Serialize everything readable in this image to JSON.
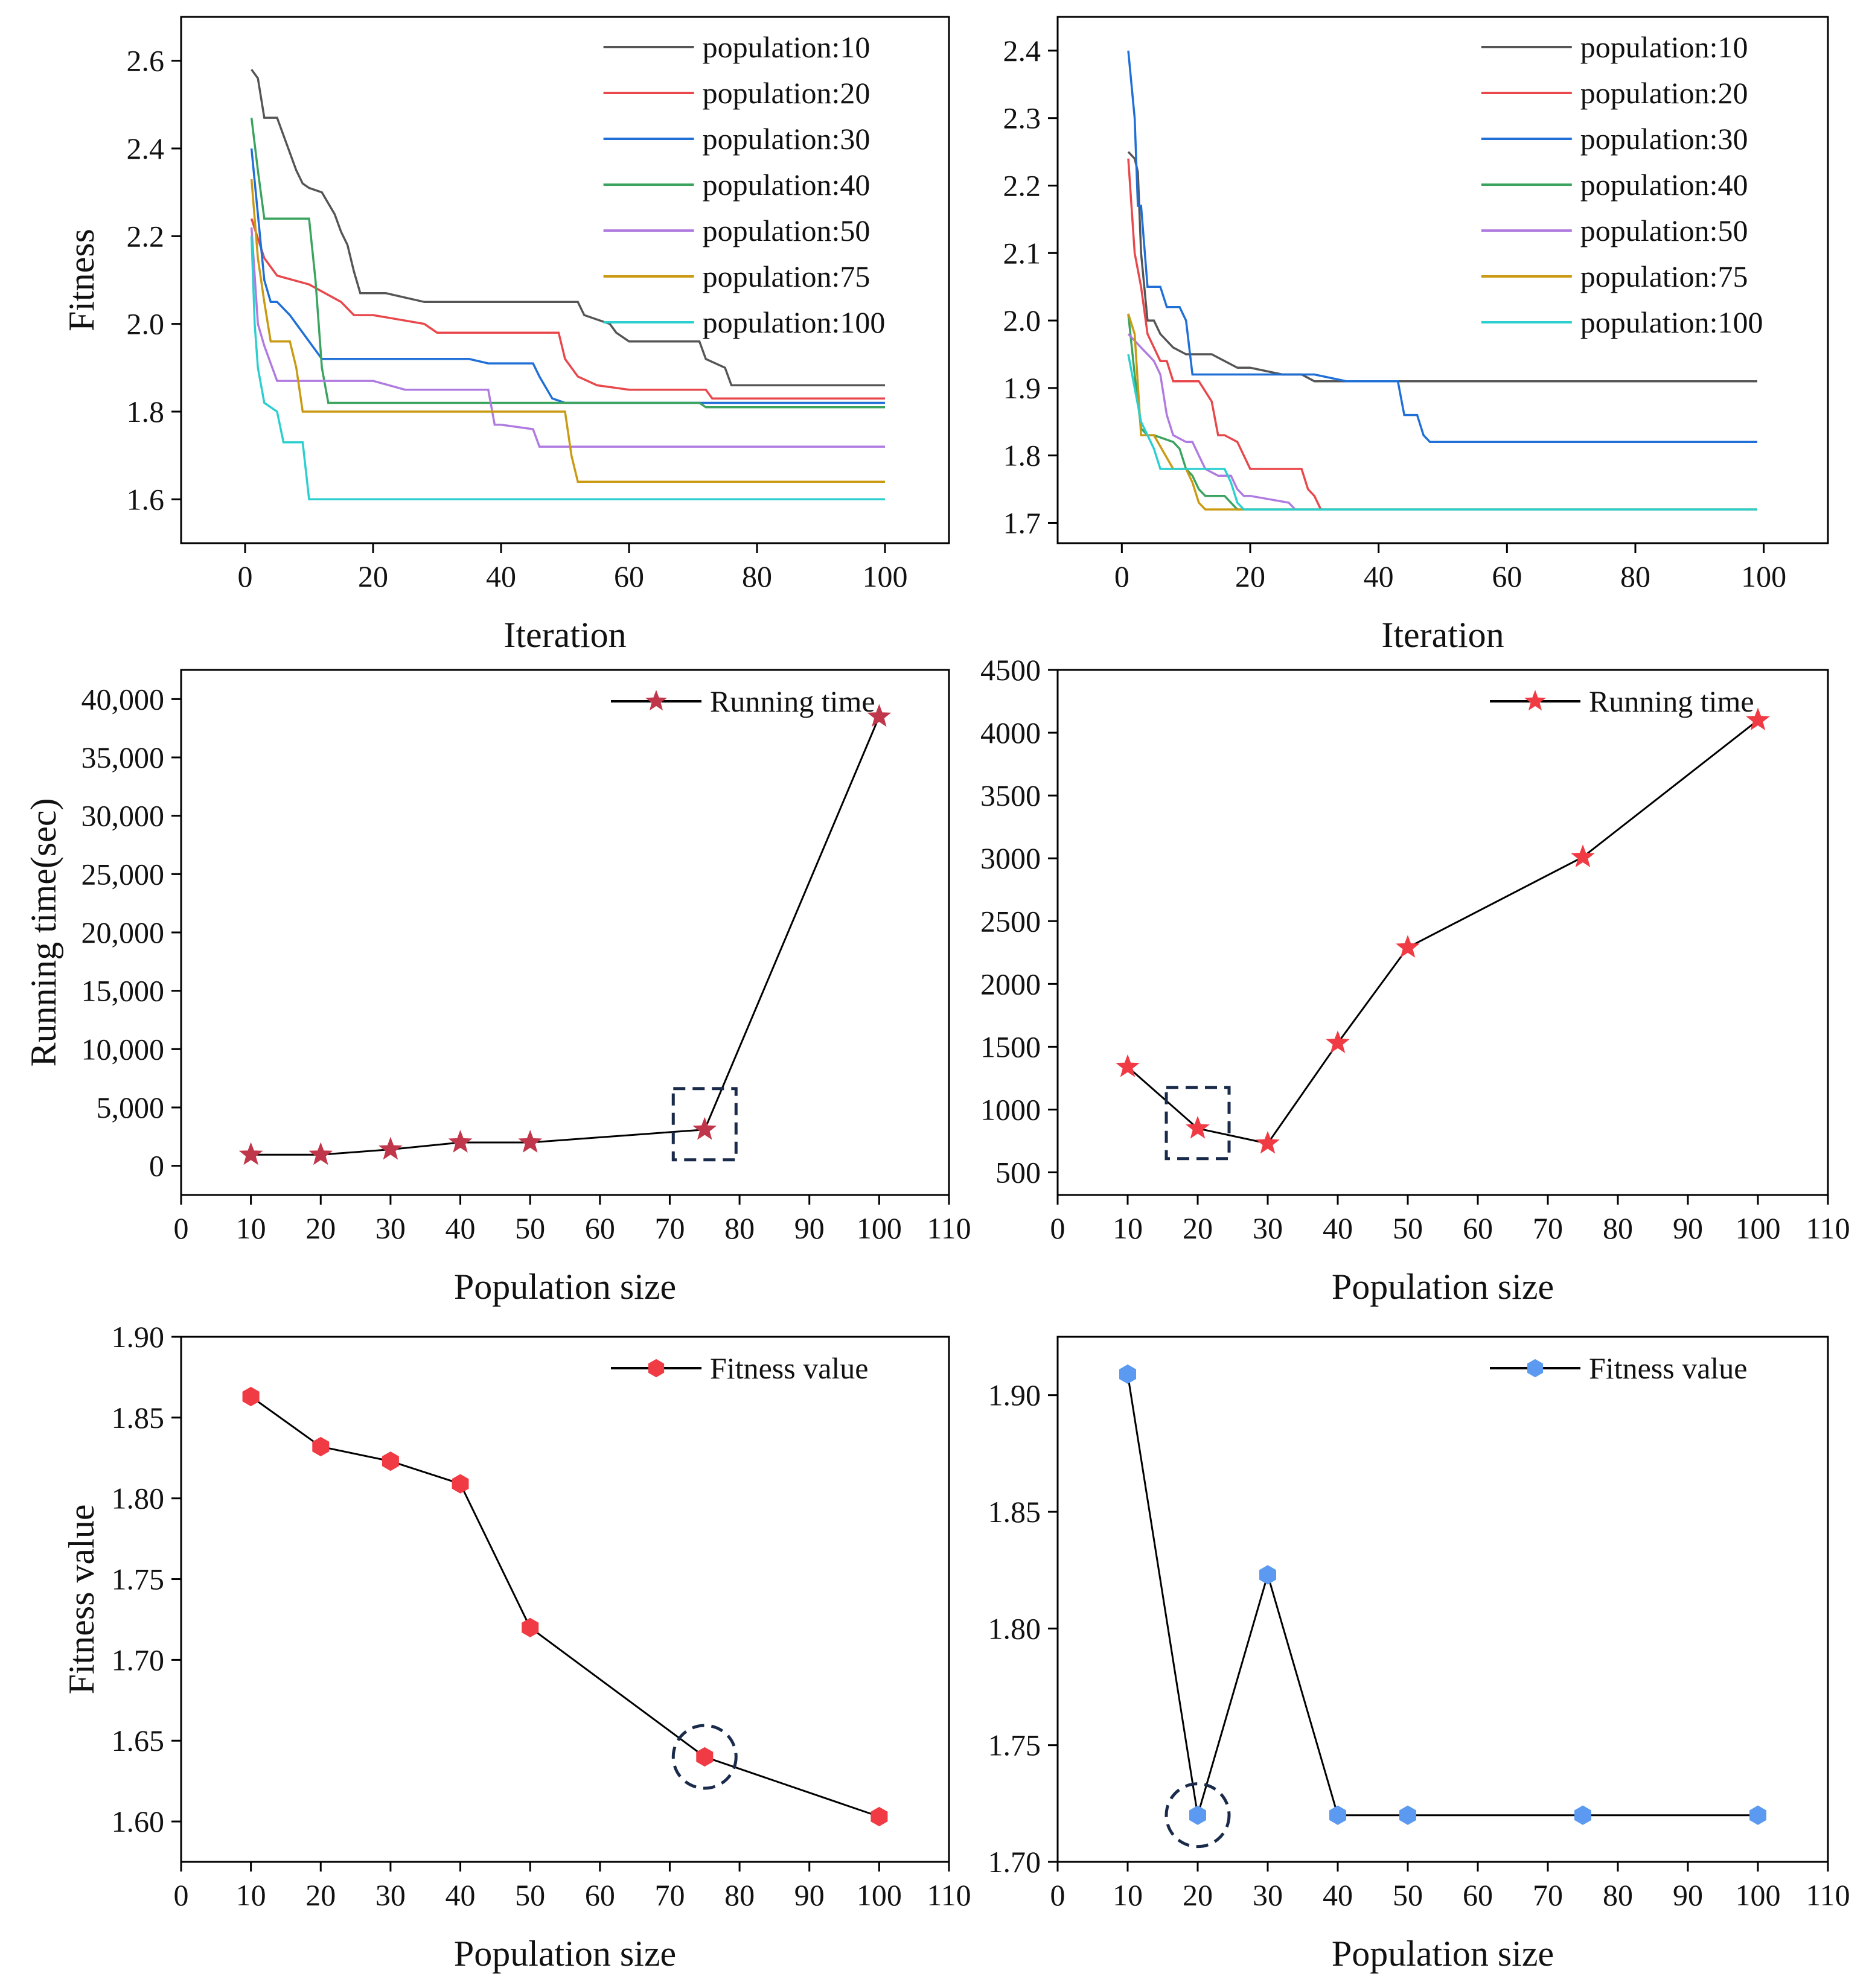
{
  "chart_data": [
    {
      "id": "fitness-convergence-left",
      "type": "line",
      "xlabel": "Iteration",
      "ylabel": "Fitness",
      "xlim": [
        -10,
        110
      ],
      "ylim": [
        1.5,
        2.7
      ],
      "xticks": [
        0,
        20,
        40,
        60,
        80,
        100
      ],
      "yticks": [
        1.6,
        1.8,
        2.0,
        2.2,
        2.4,
        2.6
      ],
      "ytick_decimals": 1,
      "legend_position": "top-right",
      "series": [
        {
          "name": "population:10",
          "color": "#555555",
          "x": [
            1,
            2,
            3,
            5,
            6,
            8,
            9,
            10,
            12,
            14,
            15,
            16,
            17,
            18,
            22,
            28,
            30,
            52,
            53,
            57,
            58,
            60,
            71,
            72,
            75,
            76,
            80,
            100
          ],
          "y": [
            2.58,
            2.56,
            2.47,
            2.47,
            2.43,
            2.35,
            2.32,
            2.31,
            2.3,
            2.25,
            2.21,
            2.18,
            2.12,
            2.07,
            2.07,
            2.05,
            2.05,
            2.05,
            2.02,
            2.0,
            1.98,
            1.96,
            1.96,
            1.92,
            1.9,
            1.86,
            1.86,
            1.86
          ]
        },
        {
          "name": "population:20",
          "color": "#e8474b",
          "x": [
            1,
            3,
            5,
            10,
            15,
            17,
            20,
            28,
            30,
            49,
            50,
            52,
            55,
            60,
            72,
            73,
            100
          ],
          "y": [
            2.24,
            2.15,
            2.11,
            2.09,
            2.05,
            2.02,
            2.02,
            2.0,
            1.98,
            1.98,
            1.92,
            1.88,
            1.86,
            1.85,
            1.85,
            1.83,
            1.83
          ]
        },
        {
          "name": "population:30",
          "color": "#1f6fd6",
          "x": [
            1,
            2,
            3,
            4,
            5,
            7,
            8,
            12,
            14,
            35,
            38,
            45,
            46,
            48,
            50,
            70,
            71,
            100
          ],
          "y": [
            2.4,
            2.25,
            2.1,
            2.05,
            2.05,
            2.02,
            2.0,
            1.92,
            1.92,
            1.92,
            1.91,
            1.91,
            1.88,
            1.83,
            1.82,
            1.82,
            1.82,
            1.82
          ]
        },
        {
          "name": "population:40",
          "color": "#3aa35e",
          "x": [
            1,
            2,
            3,
            4,
            5,
            10,
            11,
            12,
            13,
            50,
            71,
            72,
            100
          ],
          "y": [
            2.47,
            2.35,
            2.24,
            2.24,
            2.24,
            2.24,
            2.1,
            1.9,
            1.82,
            1.82,
            1.82,
            1.81,
            1.81
          ]
        },
        {
          "name": "population:50",
          "color": "#b07be0",
          "x": [
            1,
            2,
            3,
            5,
            10,
            20,
            25,
            38,
            39,
            40,
            45,
            46,
            100
          ],
          "y": [
            2.22,
            2.0,
            1.95,
            1.87,
            1.87,
            1.87,
            1.85,
            1.85,
            1.77,
            1.77,
            1.76,
            1.72,
            1.72
          ]
        },
        {
          "name": "population:75",
          "color": "#c99a12",
          "x": [
            1,
            2,
            3,
            4,
            5,
            7,
            8,
            9,
            50,
            51,
            52,
            100
          ],
          "y": [
            2.33,
            2.15,
            2.05,
            1.96,
            1.96,
            1.96,
            1.9,
            1.8,
            1.8,
            1.7,
            1.64,
            1.64
          ]
        },
        {
          "name": "population:100",
          "color": "#2ccfcf",
          "x": [
            1,
            1.5,
            2,
            3,
            5,
            6,
            7,
            8,
            9,
            10,
            11,
            100
          ],
          "y": [
            2.2,
            2.0,
            1.9,
            1.82,
            1.8,
            1.73,
            1.73,
            1.73,
            1.73,
            1.6,
            1.6,
            1.6
          ]
        }
      ]
    },
    {
      "id": "fitness-convergence-right",
      "type": "line",
      "xlabel": "Iteration",
      "ylabel": "",
      "xlim": [
        -10,
        110
      ],
      "ylim": [
        1.67,
        2.45
      ],
      "xticks": [
        0,
        20,
        40,
        60,
        80,
        100
      ],
      "yticks": [
        1.7,
        1.8,
        1.9,
        2.0,
        2.1,
        2.2,
        2.3,
        2.4
      ],
      "ytick_decimals": 1,
      "legend_position": "top-right",
      "series": [
        {
          "name": "population:10",
          "color": "#555555",
          "x": [
            1,
            2,
            2.5,
            3,
            4,
            5,
            6,
            8,
            10,
            12,
            14,
            16,
            18,
            20,
            25,
            28,
            30,
            35,
            40,
            45,
            50,
            60,
            99
          ],
          "y": [
            2.25,
            2.24,
            2.22,
            2.1,
            2.0,
            2.0,
            1.98,
            1.96,
            1.95,
            1.95,
            1.95,
            1.94,
            1.93,
            1.93,
            1.92,
            1.92,
            1.91,
            1.91,
            1.91,
            1.91,
            1.91,
            1.91,
            1.91
          ]
        },
        {
          "name": "population:20",
          "color": "#e8474b",
          "x": [
            1,
            2,
            3,
            4,
            5,
            6,
            7,
            8,
            10,
            12,
            14,
            15,
            16,
            18,
            19,
            20,
            28,
            29,
            30,
            31
          ],
          "y": [
            2.24,
            2.1,
            2.05,
            1.98,
            1.96,
            1.94,
            1.94,
            1.91,
            1.91,
            1.91,
            1.88,
            1.83,
            1.83,
            1.82,
            1.8,
            1.78,
            1.78,
            1.75,
            1.74,
            1.72
          ]
        },
        {
          "name": "population:30",
          "color": "#1f6fd6",
          "x": [
            1,
            2,
            2.5,
            3,
            4,
            5,
            6,
            7,
            8,
            9,
            10,
            11,
            15,
            20,
            25,
            30,
            35,
            43,
            44,
            46,
            47,
            48,
            60,
            99
          ],
          "y": [
            2.4,
            2.3,
            2.17,
            2.17,
            2.05,
            2.05,
            2.05,
            2.02,
            2.02,
            2.02,
            2.0,
            1.92,
            1.92,
            1.92,
            1.92,
            1.92,
            1.91,
            1.91,
            1.86,
            1.86,
            1.83,
            1.82,
            1.82,
            1.82
          ]
        },
        {
          "name": "population:40",
          "color": "#3aa35e",
          "x": [
            1,
            2,
            3,
            4,
            5,
            8,
            9,
            10,
            11,
            12,
            13,
            16,
            17,
            18,
            19,
            20,
            99
          ],
          "y": [
            2.01,
            1.92,
            1.84,
            1.83,
            1.83,
            1.82,
            1.81,
            1.78,
            1.77,
            1.75,
            1.74,
            1.74,
            1.73,
            1.72,
            1.72,
            1.72,
            1.72
          ]
        },
        {
          "name": "population:50",
          "color": "#b07be0",
          "x": [
            1,
            2,
            3,
            4,
            5,
            6,
            7,
            8,
            10,
            11,
            12,
            13,
            15,
            17,
            18,
            19,
            20,
            26,
            27
          ],
          "y": [
            1.98,
            1.97,
            1.96,
            1.95,
            1.94,
            1.92,
            1.86,
            1.83,
            1.82,
            1.82,
            1.8,
            1.78,
            1.77,
            1.77,
            1.75,
            1.74,
            1.74,
            1.73,
            1.72
          ]
        },
        {
          "name": "population:75",
          "color": "#c99a12",
          "x": [
            1,
            2,
            3,
            4,
            5,
            8,
            10,
            11,
            12,
            13,
            16,
            99
          ],
          "y": [
            2.01,
            1.98,
            1.83,
            1.83,
            1.83,
            1.78,
            1.78,
            1.76,
            1.73,
            1.72,
            1.72,
            1.72
          ]
        },
        {
          "name": "population:100",
          "color": "#2ccfcf",
          "x": [
            1,
            2,
            3,
            4,
            5,
            6,
            8,
            10,
            16,
            17,
            18,
            19,
            99
          ],
          "y": [
            1.95,
            1.9,
            1.85,
            1.83,
            1.81,
            1.78,
            1.78,
            1.78,
            1.78,
            1.76,
            1.73,
            1.72,
            1.72
          ]
        }
      ]
    },
    {
      "id": "running-time-left",
      "type": "line",
      "xlabel": "Population size",
      "ylabel": "Running time(sec)",
      "xlim": [
        0,
        110
      ],
      "ylim": [
        -2500,
        42500
      ],
      "xticks": [
        0,
        10,
        20,
        30,
        40,
        50,
        60,
        70,
        80,
        90,
        100,
        110
      ],
      "yticks": [
        0,
        5000,
        10000,
        15000,
        20000,
        25000,
        30000,
        35000,
        40000
      ],
      "ytick_labels": [
        "0",
        "5,000",
        "10,000",
        "15,000",
        "20,000",
        "25,000",
        "30,000",
        "35,000",
        "40,000"
      ],
      "legend_position": "top-right",
      "series": [
        {
          "name": "Running time",
          "color": "#000000",
          "marker": "star",
          "marker_color": "#c0364a",
          "x": [
            10,
            20,
            30,
            40,
            50,
            75,
            100
          ],
          "y": [
            950,
            950,
            1400,
            2000,
            2000,
            3100,
            38500
          ]
        }
      ],
      "highlight": {
        "shape": "dashed-box",
        "x": 75,
        "y": 3100,
        "color": "#1a2a4a"
      }
    },
    {
      "id": "running-time-right",
      "type": "line",
      "xlabel": "Population size",
      "ylabel": "",
      "xlim": [
        0,
        110
      ],
      "ylim": [
        320,
        4500
      ],
      "xticks": [
        0,
        10,
        20,
        30,
        40,
        50,
        60,
        70,
        80,
        90,
        100,
        110
      ],
      "yticks": [
        500,
        1000,
        1500,
        2000,
        2500,
        3000,
        3500,
        4000,
        4500
      ],
      "legend_position": "top-right",
      "series": [
        {
          "name": "Running time",
          "color": "#000000",
          "marker": "star",
          "marker_color": "#f03a44",
          "x": [
            10,
            20,
            30,
            40,
            50,
            75,
            100
          ],
          "y": [
            1340,
            850,
            730,
            1530,
            2290,
            3010,
            4100
          ]
        }
      ],
      "highlight": {
        "shape": "dashed-box",
        "x": 20,
        "y": 850,
        "color": "#1a2a4a"
      }
    },
    {
      "id": "fitness-value-left",
      "type": "line",
      "xlabel": "Population size",
      "ylabel": "Fitness value",
      "xlim": [
        0,
        110
      ],
      "ylim": [
        1.575,
        1.9
      ],
      "xticks": [
        0,
        10,
        20,
        30,
        40,
        50,
        60,
        70,
        80,
        90,
        100,
        110
      ],
      "yticks": [
        1.6,
        1.65,
        1.7,
        1.75,
        1.8,
        1.85,
        1.9
      ],
      "ytick_decimals": 2,
      "legend_position": "top-right",
      "series": [
        {
          "name": "Fitness value",
          "color": "#000000",
          "marker": "hexagon",
          "marker_color": "#f03a44",
          "x": [
            10,
            20,
            30,
            40,
            50,
            75,
            100
          ],
          "y": [
            1.863,
            1.832,
            1.823,
            1.809,
            1.72,
            1.64,
            1.603
          ]
        }
      ],
      "highlight": {
        "shape": "dashed-circle",
        "x": 75,
        "y": 1.64,
        "color": "#1a2a4a"
      }
    },
    {
      "id": "fitness-value-right",
      "type": "line",
      "xlabel": "Population size",
      "ylabel": "",
      "xlim": [
        0,
        110
      ],
      "ylim": [
        1.7,
        1.925
      ],
      "xticks": [
        0,
        10,
        20,
        30,
        40,
        50,
        60,
        70,
        80,
        90,
        100,
        110
      ],
      "yticks": [
        1.7,
        1.75,
        1.8,
        1.85,
        1.9
      ],
      "ytick_decimals": 2,
      "legend_position": "top-right",
      "series": [
        {
          "name": "Fitness value",
          "color": "#000000",
          "marker": "hexagon",
          "marker_color": "#5b9af0",
          "x": [
            10,
            20,
            30,
            40,
            50,
            75,
            100
          ],
          "y": [
            1.909,
            1.72,
            1.823,
            1.72,
            1.72,
            1.72,
            1.72
          ]
        }
      ],
      "highlight": {
        "shape": "dashed-circle",
        "x": 20,
        "y": 1.72,
        "color": "#1a2a4a"
      }
    }
  ]
}
